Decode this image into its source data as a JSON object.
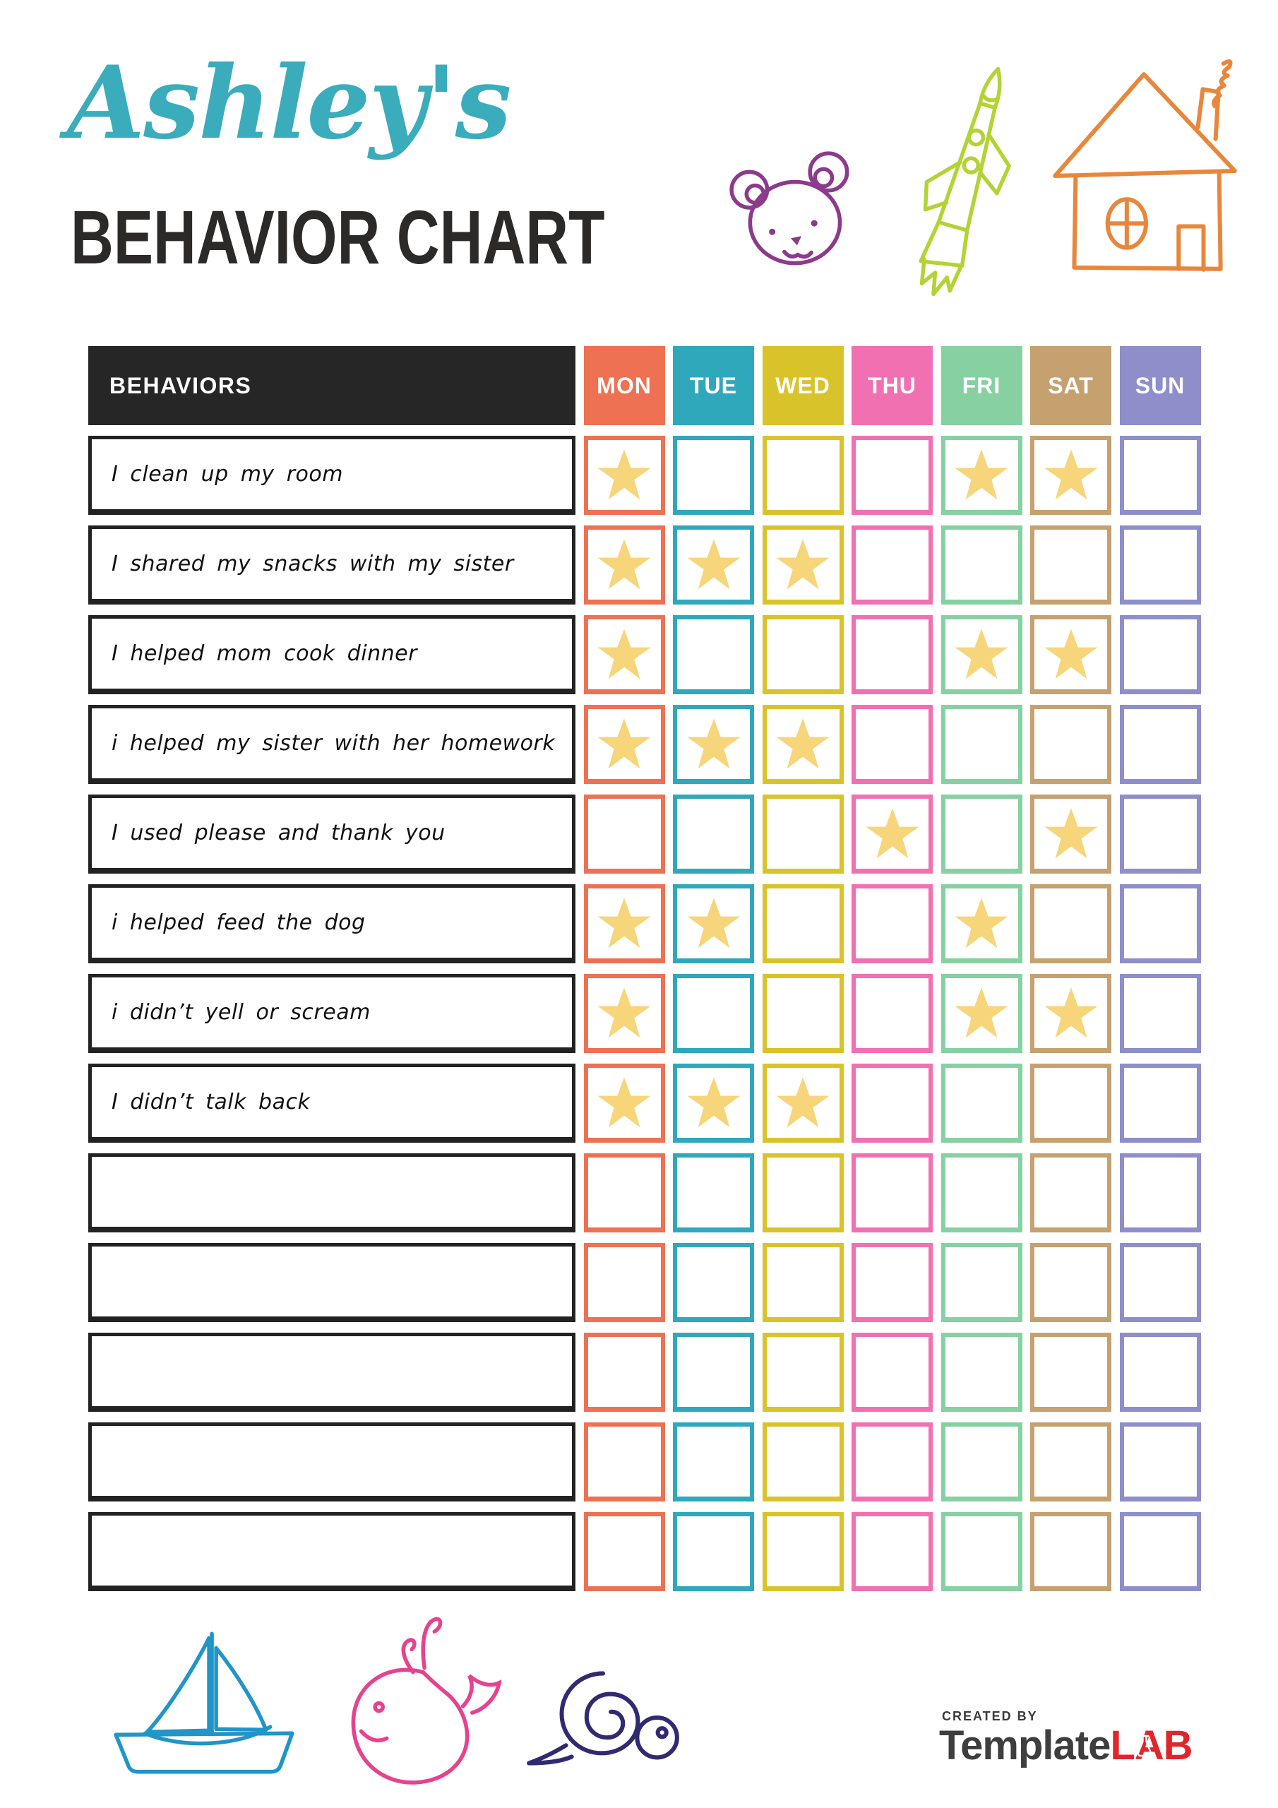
{
  "header": {
    "name": "Ashley's",
    "title": "BEHAVIOR CHART"
  },
  "table": {
    "behaviors_header": "BEHAVIORS",
    "days": [
      {
        "label": "MON",
        "color": "#ed7152"
      },
      {
        "label": "TUE",
        "color": "#2fa8bb"
      },
      {
        "label": "WED",
        "color": "#d9c32b"
      },
      {
        "label": "THU",
        "color": "#f170b2"
      },
      {
        "label": "FRI",
        "color": "#87d0a2"
      },
      {
        "label": "SAT",
        "color": "#c5a170"
      },
      {
        "label": "SUN",
        "color": "#8e8ecb"
      }
    ],
    "rows": [
      {
        "behavior": "I clean up my room",
        "stars": [
          "MON",
          "FRI",
          "SAT"
        ]
      },
      {
        "behavior": "I shared my snacks with my sister",
        "stars": [
          "MON",
          "TUE",
          "WED"
        ]
      },
      {
        "behavior": "I helped mom cook dinner",
        "stars": [
          "MON",
          "FRI",
          "SAT"
        ]
      },
      {
        "behavior": "i helped my sister with her homework",
        "stars": [
          "MON",
          "TUE",
          "WED"
        ]
      },
      {
        "behavior": "I used please and thank you",
        "stars": [
          "THU",
          "SAT"
        ]
      },
      {
        "behavior": "i helped feed the dog",
        "stars": [
          "MON",
          "TUE",
          "FRI"
        ]
      },
      {
        "behavior": "i didn’t yell or scream",
        "stars": [
          "MON",
          "FRI",
          "SAT"
        ]
      },
      {
        "behavior": "I didn’t talk back",
        "stars": [
          "MON",
          "TUE",
          "WED"
        ]
      },
      {
        "behavior": "",
        "stars": []
      },
      {
        "behavior": "",
        "stars": []
      },
      {
        "behavior": "",
        "stars": []
      },
      {
        "behavior": "",
        "stars": []
      },
      {
        "behavior": "",
        "stars": []
      }
    ],
    "star_color": "#f7d57a"
  },
  "colors": {
    "name_accent": "#3aacbc",
    "title_text": "#2b2a28",
    "behaviors_header_bg": "#262626",
    "row_border": "#222222"
  },
  "icons": {
    "bear_color": "#8b3a8c",
    "rocket_color": "#b3d335",
    "house_color": "#e8873b",
    "boat_color": "#2095c8",
    "whale_color": "#e5438f",
    "snail_color": "#322a70"
  },
  "footer": {
    "created_by": "CREATED BY",
    "brand_primary": "Template",
    "brand_accent": "LAB",
    "brand_accent_color": "#e0262b"
  }
}
